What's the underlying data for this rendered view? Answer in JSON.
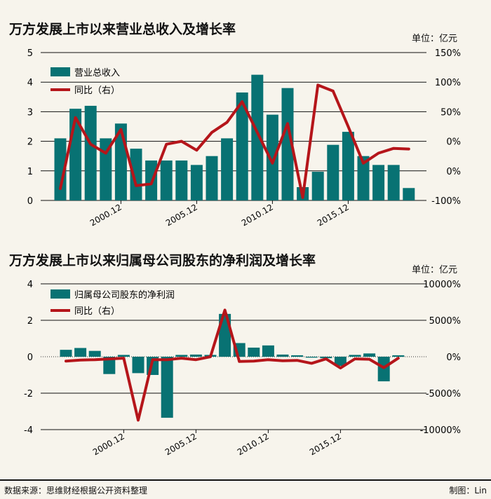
{
  "charts": [
    {
      "title": "万方发展上市以来营业总收入及增长率",
      "unit_label": "单位：亿元",
      "legend_bar": "营业总收入",
      "legend_line": "同比（右）",
      "left_ticks": [
        "5",
        "4",
        "3",
        "2",
        "1",
        "0"
      ],
      "right_ticks": [
        "150%",
        "100%",
        "50%",
        "0%",
        "0%",
        "-100%"
      ],
      "x_tick_labels": [
        "2000.12",
        "2005.12",
        "2010.12",
        "2015.12"
      ]
    },
    {
      "title": "万方发展上市以来归属母公司股东的净利润及增长率",
      "unit_label": "单位：亿元",
      "legend_bar": "归属母公司股东的净利润",
      "legend_line": "同比（右）",
      "left_ticks": [
        "4",
        "2",
        "0",
        "-2",
        "-4"
      ],
      "right_ticks": [
        "10000%",
        "5000%",
        "0%",
        "-5000%",
        "-10000%"
      ],
      "x_tick_labels": [
        "2000.12",
        "2005.12",
        "2010.12",
        "2015.12"
      ]
    }
  ],
  "chart_data": [
    {
      "type": "bar",
      "title": "万方发展上市以来营业总收入及增长率",
      "categories": [
        "1996.12",
        "1997.12",
        "1998.12",
        "1999.12",
        "2000.12",
        "2001.12",
        "2002.12",
        "2003.12",
        "2004.12",
        "2005.12",
        "2006.12",
        "2007.12",
        "2008.12",
        "2009.12",
        "2010.12",
        "2011.12",
        "2012.12",
        "2013.12",
        "2014.12",
        "2015.12",
        "2016.12",
        "2017.12",
        "2018.12",
        "2019.12"
      ],
      "x_tick_positions": [
        "2000.12",
        "2005.12",
        "2010.12",
        "2015.12"
      ],
      "series": [
        {
          "name": "营业总收入",
          "axis": "left",
          "type": "bar",
          "values": [
            2.1,
            3.1,
            3.2,
            2.1,
            2.6,
            1.75,
            1.35,
            1.35,
            1.35,
            1.2,
            1.5,
            2.1,
            3.65,
            4.25,
            2.9,
            3.8,
            0.45,
            0.97,
            1.88,
            2.32,
            1.5,
            1.2,
            1.2,
            0.42
          ]
        },
        {
          "name": "同比（右）",
          "axis": "right",
          "type": "line",
          "values": [
            -80,
            40,
            -5,
            -20,
            20,
            -75,
            -72,
            -5,
            0,
            -15,
            15,
            32,
            67,
            15,
            -37,
            30,
            -95,
            95,
            85,
            25,
            -37,
            -20,
            -12,
            -13
          ]
        }
      ],
      "left_ylim": [
        0,
        5
      ],
      "right_ylim": [
        -100,
        150
      ],
      "colors": {
        "bar": "#087273",
        "line": "#b5151a"
      }
    },
    {
      "type": "bar",
      "title": "万方发展上市以来归属母公司股东的净利润及增长率",
      "categories": [
        "1996.12",
        "1997.12",
        "1998.12",
        "1999.12",
        "2000.12",
        "2001.12",
        "2002.12",
        "2003.12",
        "2004.12",
        "2005.12",
        "2006.12",
        "2007.12",
        "2008.12",
        "2009.12",
        "2010.12",
        "2011.12",
        "2012.12",
        "2013.12",
        "2014.12",
        "2015.12",
        "2016.12",
        "2017.12",
        "2018.12",
        "2019.12"
      ],
      "x_tick_positions": [
        "2000.12",
        "2005.12",
        "2010.12",
        "2015.12"
      ],
      "series": [
        {
          "name": "归属母公司股东的净利润",
          "axis": "left",
          "type": "bar",
          "values": [
            0.38,
            0.48,
            0.32,
            -0.95,
            0.1,
            -0.9,
            -1.0,
            -3.35,
            0.1,
            0.12,
            0.1,
            2.35,
            0.75,
            0.5,
            0.62,
            0.12,
            0.08,
            -0.05,
            -0.08,
            -0.5,
            0.1,
            0.18,
            -1.35,
            0.08
          ]
        },
        {
          "name": "同比（右）",
          "axis": "right",
          "type": "line",
          "values": [
            -600,
            -450,
            -400,
            -300,
            -200,
            -8700,
            -400,
            -400,
            -200,
            -400,
            0,
            6400,
            -650,
            -600,
            -400,
            -550,
            -500,
            -900,
            -300,
            -1550,
            -300,
            -350,
            -1500,
            -200
          ]
        }
      ],
      "left_ylim": [
        -4,
        4
      ],
      "right_ylim": [
        -10000,
        10000
      ],
      "colors": {
        "bar": "#087273",
        "line": "#b5151a"
      }
    }
  ],
  "footer": {
    "source": "数据来源：思维财经根据公开资料整理",
    "author": "制图：Lin"
  }
}
